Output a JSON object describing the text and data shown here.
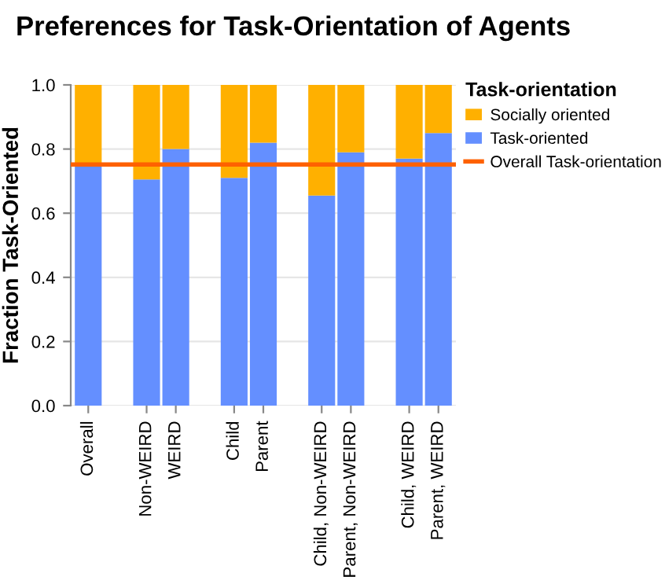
{
  "chart_data": {
    "type": "bar",
    "title": "Preferences for Task-Orientation of Agents",
    "ylabel": "Fraction Task-Oriented",
    "legend_title": "Task-orientation",
    "categories": [
      "Overall",
      null,
      "Non-WEIRD",
      "WEIRD",
      null,
      "Child",
      "Parent",
      null,
      "Child, Non-WEIRD",
      "Parent, Non-WEIRD",
      null,
      "Child, WEIRD",
      "Parent, WEIRD"
    ],
    "stacked": true,
    "series": [
      {
        "name": "Task-oriented",
        "color": "#648fff",
        "values": [
          0.75,
          null,
          0.705,
          0.8,
          null,
          0.71,
          0.82,
          null,
          0.655,
          0.79,
          null,
          0.77,
          0.85
        ]
      },
      {
        "name": "Socially oriented",
        "color": "#ffb000",
        "values": [
          0.25,
          null,
          0.295,
          0.2,
          null,
          0.29,
          0.18,
          null,
          0.345,
          0.21,
          null,
          0.23,
          0.15
        ]
      }
    ],
    "ref_lines": [
      {
        "axis": "y",
        "value": 0.752,
        "label": "Overall Task-orientation",
        "color": "#fe6100"
      }
    ],
    "ylim": [
      0,
      1
    ],
    "yticks": [
      {
        "value": 0,
        "label": "0.0"
      },
      {
        "value": 0.2,
        "label": "0.2"
      },
      {
        "value": 0.4,
        "label": "0.4"
      },
      {
        "value": 0.6,
        "label": "0.6"
      },
      {
        "value": 0.8,
        "label": "0.8"
      },
      {
        "value": 1,
        "label": "1.0"
      }
    ],
    "grid": "y",
    "legend": "top right"
  }
}
